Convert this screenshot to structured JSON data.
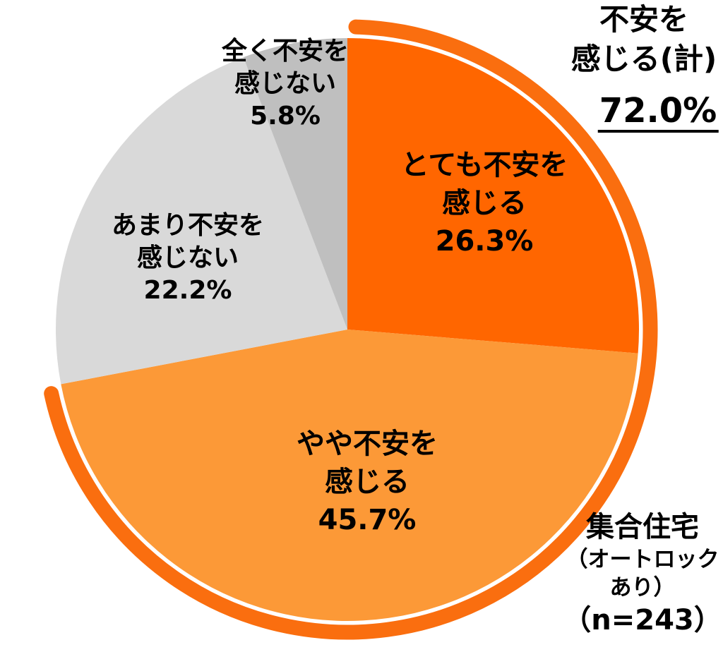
{
  "chart_data": {
    "type": "pie",
    "title": "",
    "unit": "%",
    "direction": "clockwise",
    "start_angle_deg": 0,
    "categories": [
      "とても不安を感じる",
      "やや不安を感じる",
      "あまり不安を感じない",
      "全く不安を感じない"
    ],
    "values": [
      26.3,
      45.7,
      22.2,
      5.8
    ],
    "slices": [
      {
        "label": "とても不安を感じる",
        "label_lines": [
          "とても不安を",
          "感じる"
        ],
        "value": 26.3,
        "pct_text": "26.3%",
        "color": "#FF6600"
      },
      {
        "label": "やや不安を感じる",
        "label_lines": [
          "やや不安を",
          "感じる"
        ],
        "value": 45.7,
        "pct_text": "45.7%",
        "color": "#FC9937"
      },
      {
        "label": "あまり不安を感じない",
        "label_lines": [
          "あまり不安を",
          "感じない"
        ],
        "value": 22.2,
        "pct_text": "22.2%",
        "color": "#D9D9D9"
      },
      {
        "label": "全く不安を感じない",
        "label_lines": [
          "全く不安を",
          "感じない"
        ],
        "value": 5.8,
        "pct_text": "5.8%",
        "color": "#BFBFBF"
      }
    ],
    "total_annotation": {
      "label_lines": [
        "不安を",
        "感じる(計)"
      ],
      "value": 72.0,
      "value_text": "72.0%",
      "covers": [
        "とても不安を感じる",
        "やや不安を感じる"
      ],
      "arc_color": "#FA6E0F"
    },
    "sample_note": {
      "lines": [
        "集合住宅",
        "（オートロック",
        "あり）",
        "（n=243）"
      ],
      "n": 243
    },
    "colors": {
      "background": "#FFFFFF",
      "text": "#000000"
    },
    "legend": "none",
    "grid": false
  }
}
